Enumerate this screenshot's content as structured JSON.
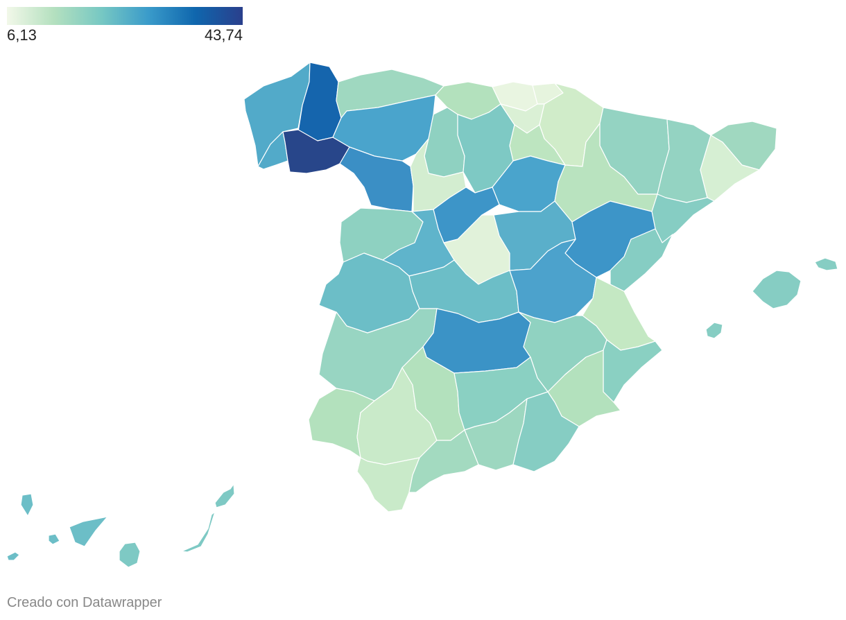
{
  "legend": {
    "min_label": "6,13",
    "max_label": "43,74",
    "gradient_colors": [
      "#f2f8e9",
      "#b4e0bf",
      "#77c8c3",
      "#3a9bca",
      "#0f66ad",
      "#2a3f8c"
    ]
  },
  "map": {
    "stroke_color": "#ffffff",
    "regions": [
      {
        "name": "A Coruña",
        "color": "#52aac9"
      },
      {
        "name": "Lugo",
        "color": "#1565ad"
      },
      {
        "name": "Pontevedra",
        "color": "#52aac9"
      },
      {
        "name": "Ourense",
        "color": "#28468a"
      },
      {
        "name": "Asturias",
        "color": "#9fd8c0"
      },
      {
        "name": "León",
        "color": "#4aa4cc"
      },
      {
        "name": "Zamora",
        "color": "#3b8fc5"
      },
      {
        "name": "Cantabria",
        "color": "#b3e1bd"
      },
      {
        "name": "Palencia",
        "color": "#8fd1c1"
      },
      {
        "name": "Burgos",
        "color": "#7ec9c4"
      },
      {
        "name": "Valladolid",
        "color": "#d3edd0"
      },
      {
        "name": "Bizkaia",
        "color": "#e9f5e1"
      },
      {
        "name": "Gipuzkoa",
        "color": "#e6f4de"
      },
      {
        "name": "Álava",
        "color": "#daf0d5"
      },
      {
        "name": "Navarra",
        "color": "#d0ecc9"
      },
      {
        "name": "La Rioja",
        "color": "#bde5c0"
      },
      {
        "name": "Soria",
        "color": "#4aa4cc"
      },
      {
        "name": "Segovia",
        "color": "#3d95c8"
      },
      {
        "name": "Huesca",
        "color": "#94d3c2"
      },
      {
        "name": "Zaragoza",
        "color": "#b9e3bf"
      },
      {
        "name": "Lleida",
        "color": "#94d3c2"
      },
      {
        "name": "Girona",
        "color": "#a0d8c0"
      },
      {
        "name": "Barcelona",
        "color": "#d6efd3"
      },
      {
        "name": "Tarragona",
        "color": "#86cdc3"
      },
      {
        "name": "Salamanca",
        "color": "#8ed1c1"
      },
      {
        "name": "Ávila",
        "color": "#5fb4cb"
      },
      {
        "name": "Madrid",
        "color": "#e1f2da"
      },
      {
        "name": "Guadalajara",
        "color": "#5aafca"
      },
      {
        "name": "Teruel",
        "color": "#3d95c8"
      },
      {
        "name": "Castellón",
        "color": "#86cdc3"
      },
      {
        "name": "Cáceres",
        "color": "#6cbec7"
      },
      {
        "name": "Toledo",
        "color": "#6cbec7"
      },
      {
        "name": "Cuenca",
        "color": "#4ca2cc"
      },
      {
        "name": "Valencia",
        "color": "#c4e8c3"
      },
      {
        "name": "Badajoz",
        "color": "#98d5c2"
      },
      {
        "name": "Ciudad Real",
        "color": "#3b93c6"
      },
      {
        "name": "Albacete",
        "color": "#90d2c1"
      },
      {
        "name": "Alicante",
        "color": "#8ad0c2"
      },
      {
        "name": "Huelva",
        "color": "#b3e1bd"
      },
      {
        "name": "Sevilla",
        "color": "#c9eac9"
      },
      {
        "name": "Córdoba",
        "color": "#b3e1bd"
      },
      {
        "name": "Jaén",
        "color": "#8ad0c2"
      },
      {
        "name": "Murcia",
        "color": "#b3e1bd"
      },
      {
        "name": "Cádiz",
        "color": "#c9eac9"
      },
      {
        "name": "Málaga",
        "color": "#a3dac0"
      },
      {
        "name": "Granada",
        "color": "#9dd7c0"
      },
      {
        "name": "Almería",
        "color": "#86cdc3"
      },
      {
        "name": "Mallorca",
        "color": "#86cdc3"
      },
      {
        "name": "Menorca",
        "color": "#86cdc3"
      },
      {
        "name": "Ibiza",
        "color": "#86cdc3"
      },
      {
        "name": "Santa Cruz de Tenerife",
        "color": "#6cbec7"
      },
      {
        "name": "Las Palmas",
        "color": "#7ec9c4"
      }
    ]
  },
  "credit": "Creado con Datawrapper"
}
